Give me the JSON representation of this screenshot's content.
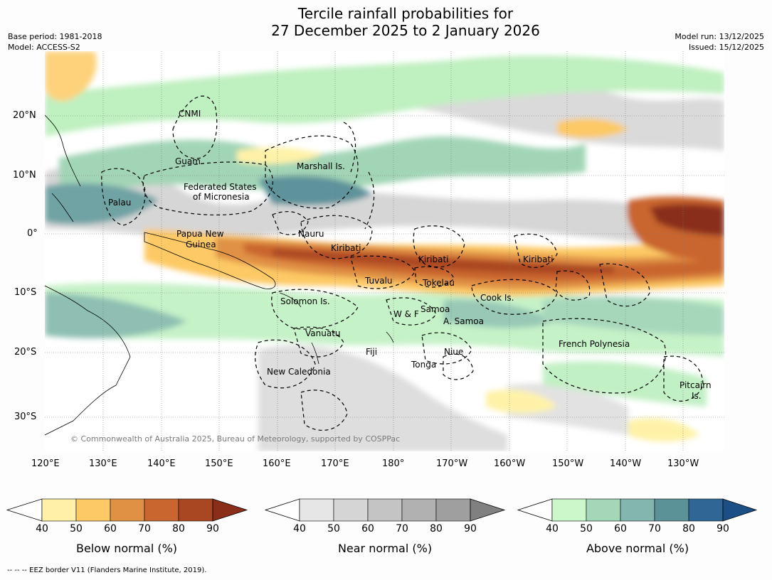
{
  "title": {
    "line1": "Tercile rainfall probabilities for",
    "line2": "27 December 2025 to 2 January 2026"
  },
  "meta": {
    "base_period": "Base period: 1981-2018",
    "model": "Model: ACCESS-S2",
    "model_run": "Model run: 13/12/2025",
    "issued": "Issued: 15/12/2025"
  },
  "map": {
    "lat_ticks": [
      "20°N",
      "10°N",
      "0°",
      "10°S",
      "20°S",
      "30°S"
    ],
    "lon_ticks": [
      "120°E",
      "130°E",
      "140°E",
      "150°E",
      "160°E",
      "170°E",
      "180°",
      "170°W",
      "160°W",
      "150°W",
      "140°W",
      "130°W"
    ],
    "copyright": "© Commonwealth of Australia 2025, Bureau of Meteorology, supported by COSPPac",
    "places": {
      "cnmi": "CNMI",
      "guam": "Guam",
      "marshall": "Marshall Is.",
      "fsm_1": "Federated States",
      "fsm_2": "of Micronesia",
      "palau": "Palau",
      "png_1": "Papua New",
      "png_2": "Guinea",
      "nauru": "Nauru",
      "kiribati_w": "Kiribati",
      "kiribati_c": "Kiribati",
      "kiribati_e": "Kiribati",
      "tuvalu": "Tuvalu",
      "tokelau": "Tokelau",
      "cook": "Cook Is.",
      "solomon": "Solomon Is.",
      "samoa": "Samoa",
      "wf": "W & F",
      "asamoa": "A. Samoa",
      "vanuatu": "Vanuatu",
      "fiji": "Fiji",
      "niue": "Niue",
      "tonga": "Tonga",
      "french_polynesia": "French Polynesia",
      "new_caledonia": "New Caledonia",
      "pitcairn_1": "Pitcairn",
      "pitcairn_2": "Is."
    }
  },
  "colorbars": [
    {
      "label": "Below normal (%)",
      "colors": [
        "#fff2a8",
        "#fdc965",
        "#e09144",
        "#c9652f",
        "#aa4723",
        "#8a2e1a"
      ]
    },
    {
      "label": "Near normal (%)",
      "colors": [
        "#e6e6e6",
        "#d5d5d5",
        "#c4c4c4",
        "#b1b1b1",
        "#9f9f9f",
        "#808080"
      ]
    },
    {
      "label": "Above normal (%)",
      "colors": [
        "#cbf7cb",
        "#a4d6b8",
        "#83b6ae",
        "#5b9298",
        "#2e6796",
        "#1b4f86"
      ]
    }
  ],
  "colorbar_ticks": [
    "40",
    "50",
    "60",
    "70",
    "80",
    "90"
  ],
  "footnote": "--  --  -- EEZ border V11 (Flanders Marine Institute, 2019)."
}
